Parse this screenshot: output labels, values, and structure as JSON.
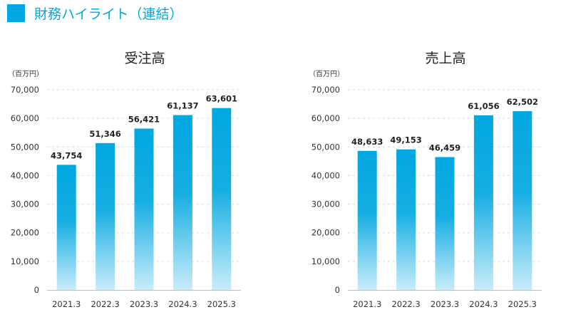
{
  "header": {
    "title": "財務ハイライト（連結）",
    "accent_color": "#00a7e1"
  },
  "chart_data": [
    {
      "type": "bar",
      "title": "受注高",
      "ylabel": "（百万円）",
      "xlabel": "",
      "categories": [
        "2021.3",
        "2022.3",
        "2023.3",
        "2024.3",
        "2025.3"
      ],
      "values": [
        43754,
        51346,
        56421,
        61137,
        63601
      ],
      "value_labels": [
        "43,754",
        "51,346",
        "56,421",
        "61,137",
        "63,601"
      ],
      "ylim": [
        0,
        70000
      ],
      "yticks": [
        "0",
        "10,000",
        "20,000",
        "30,000",
        "40,000",
        "50,000",
        "60,000",
        "70,000"
      ],
      "grid": true,
      "legend": "none"
    },
    {
      "type": "bar",
      "title": "売上高",
      "ylabel": "（百万円）",
      "xlabel": "",
      "categories": [
        "2021.3",
        "2022.3",
        "2023.3",
        "2024.3",
        "2025.3"
      ],
      "values": [
        48633,
        49153,
        46459,
        61056,
        62502
      ],
      "value_labels": [
        "48,633",
        "49,153",
        "46,459",
        "61,056",
        "62,502"
      ],
      "ylim": [
        0,
        70000
      ],
      "yticks": [
        "0",
        "10,000",
        "20,000",
        "30,000",
        "40,000",
        "50,000",
        "60,000",
        "70,000"
      ],
      "grid": true,
      "legend": "none"
    }
  ]
}
